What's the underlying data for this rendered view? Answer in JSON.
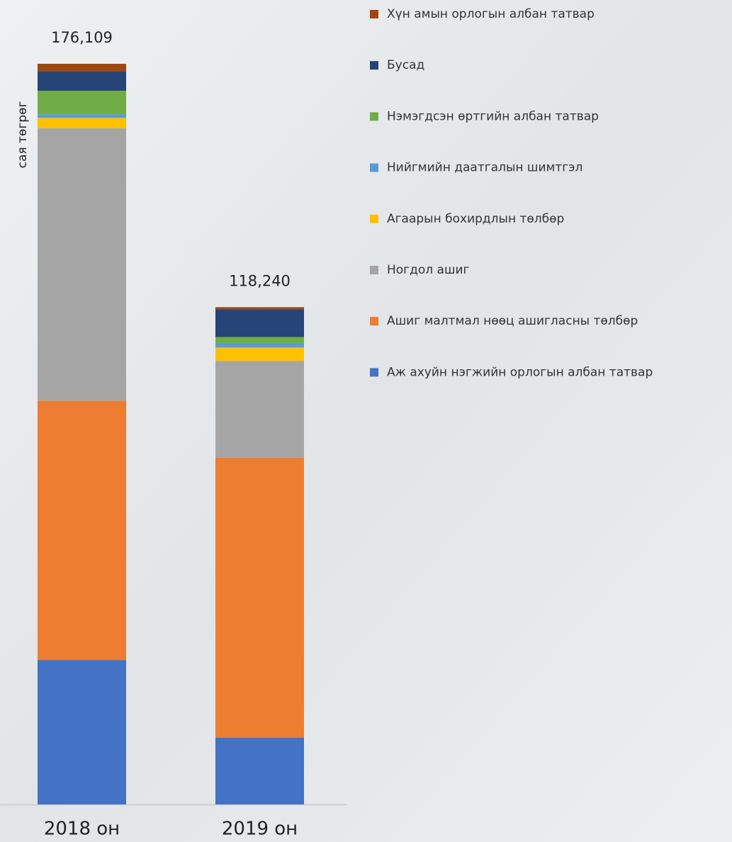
{
  "chart_data": {
    "type": "stacked-bar",
    "y_label": "сая төгрөг",
    "categories": [
      "2018 он",
      "2019 он"
    ],
    "series": [
      {
        "name": "Аж ахуйн нэгжийн орлогын албан татвар",
        "color": "#4472c4",
        "values": [
          34359,
          15900
        ]
      },
      {
        "name": "Ашиг малтмал нөөц ашигласны төлбөр",
        "color": "#ed7d31",
        "values": [
          61600,
          66540
        ]
      },
      {
        "name": "Ногдол ашиг",
        "color": "#a5a5a5",
        "values": [
          64800,
          23000
        ]
      },
      {
        "name": "Агаарын бохирдлын төлбөр",
        "color": "#ffc000",
        "values": [
          2500,
          3200
        ]
      },
      {
        "name": "Нийгмийн даатгалын шимтгэл",
        "color": "#5b9bd5",
        "values": [
          850,
          1000
        ]
      },
      {
        "name": "Нэмэгдсэн өртгийн албан татвар",
        "color": "#70ad47",
        "values": [
          5600,
          1500
        ]
      },
      {
        "name": "Бусад",
        "color": "#264478",
        "values": [
          4550,
          6600
        ]
      },
      {
        "name": "Хүн амын орлогын албан татвар",
        "color": "#9e480e",
        "values": [
          1850,
          500
        ]
      }
    ],
    "totals": {
      "values": [
        176109,
        118240
      ],
      "value_labels": [
        "176,109",
        "118,240"
      ]
    }
  }
}
